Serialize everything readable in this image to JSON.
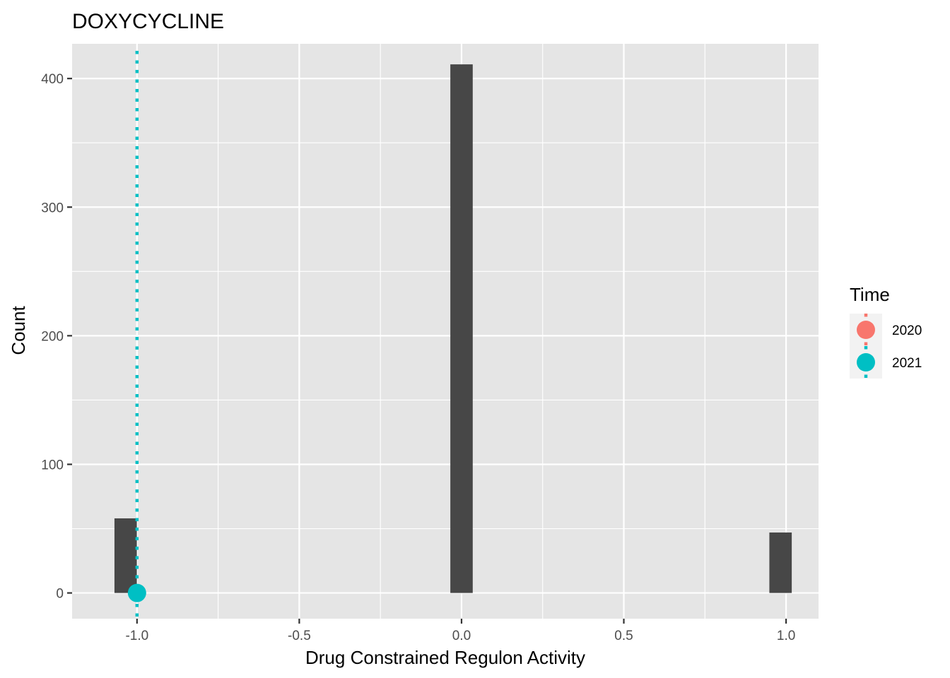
{
  "chart_data": {
    "type": "bar",
    "title": "DOXYCYCLINE",
    "xlabel": "Drug Constrained Regulon Activity",
    "ylabel": "Count",
    "xlim": [
      -1.2,
      1.1
    ],
    "ylim": [
      -20,
      427
    ],
    "x_ticks": [
      -1.0,
      -0.5,
      0.0,
      0.5,
      1.0
    ],
    "x_tick_labels": [
      "-1.0",
      "-0.5",
      "0.0",
      "0.5",
      "1.0"
    ],
    "y_ticks": [
      0,
      100,
      200,
      300,
      400
    ],
    "y_tick_labels": [
      "0",
      "100",
      "200",
      "300",
      "400"
    ],
    "bin_width": 0.069,
    "bars": [
      {
        "x": -1.035,
        "value": 58
      },
      {
        "x": 0.0,
        "value": 411
      },
      {
        "x": 0.983,
        "value": 47
      }
    ],
    "markers": [
      {
        "series": "2021",
        "x": -1.0,
        "y": 0,
        "vline": true
      }
    ],
    "legend": {
      "title": "Time",
      "placement": "right",
      "entries": [
        {
          "label": "2020",
          "color": "#F8766D"
        },
        {
          "label": "2021",
          "color": "#00BFC4"
        }
      ]
    },
    "grid": true,
    "colors": {
      "panel": "#E5E5E5",
      "grid": "#FFFFFF",
      "bar": "#474747",
      "tick": "#333333"
    }
  }
}
